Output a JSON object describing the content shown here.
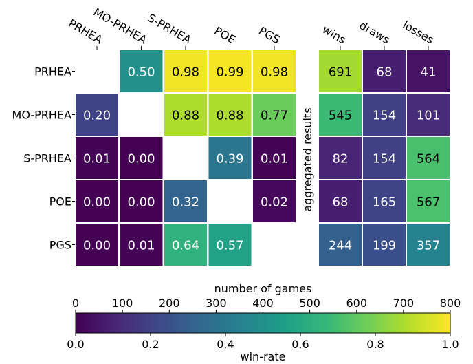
{
  "chart_data": [
    {
      "type": "heatmap",
      "title": "",
      "rows": [
        "PRHEA",
        "MO-PRHEA",
        "S-PRHEA",
        "POE",
        "PGS"
      ],
      "columns": [
        "PRHEA",
        "MO-PRHEA",
        "S-PRHEA",
        "POE",
        "PGS"
      ],
      "values": [
        [
          null,
          0.5,
          0.98,
          0.99,
          0.98
        ],
        [
          0.2,
          null,
          0.88,
          0.88,
          0.77
        ],
        [
          0.01,
          0.0,
          null,
          0.39,
          0.01
        ],
        [
          0.0,
          0.0,
          0.32,
          null,
          0.02
        ],
        [
          0.0,
          0.01,
          0.64,
          0.57,
          null
        ]
      ],
      "value_format": "2 decimals",
      "colorbar": {
        "label": "win-rate",
        "range": [
          0.0,
          1.0
        ],
        "ticks": [
          "0.0",
          "0.2",
          "0.4",
          "0.6",
          "0.8",
          "1.0"
        ]
      },
      "colormap": "viridis"
    },
    {
      "type": "heatmap",
      "title": "aggregated results",
      "rows": [
        "PRHEA",
        "MO-PRHEA",
        "S-PRHEA",
        "POE",
        "PGS"
      ],
      "columns": [
        "wins",
        "draws",
        "losses"
      ],
      "values": [
        [
          691,
          68,
          41
        ],
        [
          545,
          154,
          101
        ],
        [
          82,
          154,
          564
        ],
        [
          68,
          165,
          567
        ],
        [
          244,
          199,
          357
        ]
      ],
      "colorbar": {
        "label": "number of games",
        "range": [
          0,
          800
        ],
        "ticks": [
          "0",
          "100",
          "200",
          "300",
          "400",
          "500",
          "600",
          "700",
          "800"
        ]
      },
      "colormap": "viridis"
    }
  ],
  "colormap_stops": [
    "#440154",
    "#482878",
    "#3e4989",
    "#31688e",
    "#26828e",
    "#1f9e89",
    "#35b779",
    "#6ece58",
    "#b5de2b",
    "#fde725"
  ]
}
